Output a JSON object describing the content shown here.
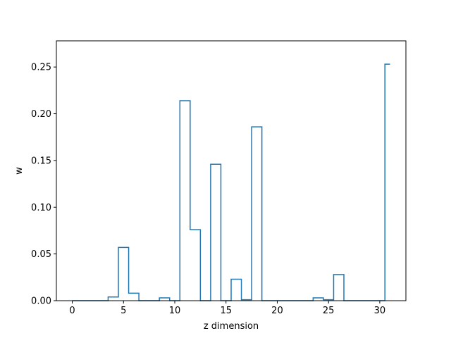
{
  "chart_data": {
    "type": "line",
    "step": "mid",
    "title": "",
    "xlabel": "z dimension",
    "ylabel": "w",
    "xlim": [
      -1.55,
      32.55
    ],
    "ylim": [
      0.0,
      0.278
    ],
    "xticks": [
      0,
      5,
      10,
      15,
      20,
      25,
      30
    ],
    "xtick_labels": [
      "0",
      "5",
      "10",
      "15",
      "20",
      "25",
      "30"
    ],
    "yticks": [
      0.0,
      0.05,
      0.1,
      0.15,
      0.2,
      0.25
    ],
    "ytick_labels": [
      "0.00",
      "0.05",
      "0.10",
      "0.15",
      "0.20",
      "0.25"
    ],
    "grid": false,
    "legend": "none",
    "series": [
      {
        "color": "#1f77b4",
        "x": [
          0,
          1,
          2,
          3,
          4,
          5,
          6,
          7,
          8,
          9,
          10,
          11,
          12,
          13,
          14,
          15,
          16,
          17,
          18,
          19,
          20,
          21,
          22,
          23,
          24,
          25,
          26,
          27,
          28,
          29,
          30,
          31
        ],
        "y": [
          0,
          0,
          0,
          0,
          0.004,
          0.057,
          0.008,
          0,
          0,
          0.003,
          0,
          0.214,
          0.076,
          0,
          0.146,
          0,
          0.023,
          0.001,
          0.186,
          0,
          0,
          0,
          0,
          0,
          0.003,
          0.001,
          0.028,
          0,
          0,
          0,
          0,
          0.253
        ]
      }
    ]
  }
}
